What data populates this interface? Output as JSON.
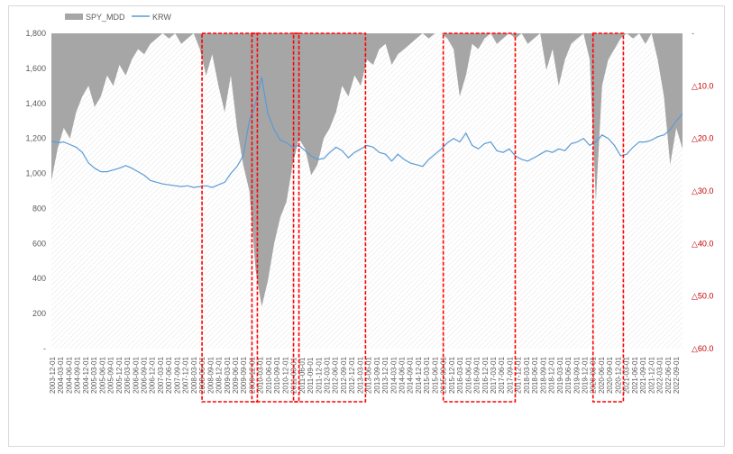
{
  "chart_data": {
    "type": "area+line",
    "title": "",
    "legend": [
      {
        "name": "SPY_MDD",
        "color": "#a6a6a6",
        "kind": "area"
      },
      {
        "name": "KRW",
        "color": "#5b9bd5",
        "kind": "line"
      }
    ],
    "left_axis": {
      "range": [
        0,
        1800
      ],
      "ticks": [
        "-",
        "200",
        "400",
        "600",
        "800",
        "1,000",
        "1,200",
        "1,400",
        "1,600",
        "1,800"
      ]
    },
    "right_axis": {
      "range_desc": "drawdown %, 0 at top to 60 at bottom",
      "range": [
        0,
        60
      ],
      "ticks": [
        "-",
        "△10.0",
        "△20.0",
        "△30.0",
        "△40.0",
        "△50.0",
        "△60.0"
      ]
    },
    "x_labels": [
      "2003-12-01",
      "2004-03-01",
      "2004-06-01",
      "2004-09-01",
      "2004-12-01",
      "2005-03-01",
      "2005-06-01",
      "2005-09-01",
      "2005-12-01",
      "2006-03-01",
      "2006-06-01",
      "2006-09-01",
      "2006-12-01",
      "2007-03-01",
      "2007-06-01",
      "2007-09-01",
      "2007-12-01",
      "2008-03-01",
      "2008-06-01",
      "2008-09-01",
      "2008-12-01",
      "2009-03-01",
      "2009-06-01",
      "2009-09-01",
      "2009-12-01",
      "2010-03-01",
      "2010-06-01",
      "2010-09-01",
      "2010-12-01",
      "2011-03-01",
      "2011-06-01",
      "2011-09-01",
      "2011-12-01",
      "2012-03-01",
      "2012-06-01",
      "2012-09-01",
      "2012-12-01",
      "2013-03-01",
      "2013-06-01",
      "2013-09-01",
      "2013-12-01",
      "2014-03-01",
      "2014-06-01",
      "2014-09-01",
      "2014-12-01",
      "2015-03-01",
      "2015-06-01",
      "2015-09-01",
      "2015-12-01",
      "2016-03-01",
      "2016-06-01",
      "2016-09-01",
      "2016-12-01",
      "2017-03-01",
      "2017-06-01",
      "2017-09-01",
      "2017-12-01",
      "2018-03-01",
      "2018-06-01",
      "2018-09-01",
      "2018-12-01",
      "2019-03-01",
      "2019-06-01",
      "2019-09-01",
      "2019-12-01",
      "2020-03-01",
      "2020-06-01",
      "2020-09-01",
      "2020-12-01",
      "2021-03-01",
      "2021-06-01",
      "2021-09-01",
      "2021-12-01",
      "2022-03-01",
      "2022-06-01",
      "2022-09-01"
    ],
    "krw_series": {
      "name": "KRW",
      "unit": "KRW per USD",
      "points": [
        [
          0,
          1185
        ],
        [
          2,
          1175
        ],
        [
          4,
          1180
        ],
        [
          6,
          1165
        ],
        [
          8,
          1150
        ],
        [
          10,
          1120
        ],
        [
          12,
          1060
        ],
        [
          14,
          1030
        ],
        [
          16,
          1010
        ],
        [
          18,
          1010
        ],
        [
          20,
          1020
        ],
        [
          22,
          1030
        ],
        [
          24,
          1045
        ],
        [
          26,
          1030
        ],
        [
          28,
          1010
        ],
        [
          30,
          990
        ],
        [
          32,
          960
        ],
        [
          34,
          950
        ],
        [
          36,
          940
        ],
        [
          38,
          935
        ],
        [
          40,
          930
        ],
        [
          42,
          925
        ],
        [
          44,
          930
        ],
        [
          46,
          920
        ],
        [
          48,
          925
        ],
        [
          50,
          930
        ],
        [
          52,
          920
        ],
        [
          54,
          935
        ],
        [
          56,
          950
        ],
        [
          58,
          1000
        ],
        [
          60,
          1040
        ],
        [
          62,
          1100
        ],
        [
          64,
          1300
        ],
        [
          66,
          1400
        ],
        [
          67,
          1480
        ],
        [
          68,
          1550
        ],
        [
          69,
          1440
        ],
        [
          70,
          1340
        ],
        [
          72,
          1250
        ],
        [
          74,
          1190
        ],
        [
          76,
          1175
        ],
        [
          78,
          1150
        ],
        [
          80,
          1160
        ],
        [
          82,
          1130
        ],
        [
          84,
          1100
        ],
        [
          86,
          1080
        ],
        [
          88,
          1085
        ],
        [
          90,
          1120
        ],
        [
          92,
          1150
        ],
        [
          94,
          1130
        ],
        [
          96,
          1090
        ],
        [
          98,
          1120
        ],
        [
          100,
          1140
        ],
        [
          102,
          1160
        ],
        [
          104,
          1150
        ],
        [
          106,
          1120
        ],
        [
          108,
          1110
        ],
        [
          110,
          1070
        ],
        [
          112,
          1110
        ],
        [
          114,
          1080
        ],
        [
          116,
          1060
        ],
        [
          118,
          1050
        ],
        [
          120,
          1040
        ],
        [
          122,
          1080
        ],
        [
          124,
          1110
        ],
        [
          126,
          1140
        ],
        [
          128,
          1175
        ],
        [
          130,
          1200
        ],
        [
          132,
          1180
        ],
        [
          134,
          1230
        ],
        [
          136,
          1160
        ],
        [
          138,
          1140
        ],
        [
          140,
          1170
        ],
        [
          142,
          1180
        ],
        [
          144,
          1130
        ],
        [
          146,
          1120
        ],
        [
          148,
          1140
        ],
        [
          150,
          1100
        ],
        [
          152,
          1080
        ],
        [
          154,
          1070
        ],
        [
          156,
          1090
        ],
        [
          158,
          1110
        ],
        [
          160,
          1130
        ],
        [
          162,
          1120
        ],
        [
          164,
          1140
        ],
        [
          166,
          1130
        ],
        [
          168,
          1170
        ],
        [
          170,
          1180
        ],
        [
          172,
          1200
        ],
        [
          174,
          1160
        ],
        [
          176,
          1180
        ],
        [
          178,
          1220
        ],
        [
          180,
          1200
        ],
        [
          182,
          1160
        ],
        [
          184,
          1100
        ],
        [
          186,
          1110
        ],
        [
          188,
          1150
        ],
        [
          190,
          1180
        ],
        [
          192,
          1180
        ],
        [
          194,
          1190
        ],
        [
          196,
          1210
        ],
        [
          198,
          1220
        ],
        [
          200,
          1250
        ],
        [
          202,
          1300
        ],
        [
          204,
          1340
        ]
      ],
      "x_range": [
        0,
        204
      ]
    },
    "mdd_series": {
      "name": "SPY_MDD",
      "unit": "drawdown % (shown as △)",
      "points": [
        [
          0,
          28
        ],
        [
          2,
          22
        ],
        [
          4,
          18
        ],
        [
          6,
          20
        ],
        [
          8,
          15
        ],
        [
          10,
          12
        ],
        [
          12,
          10
        ],
        [
          14,
          14
        ],
        [
          16,
          12
        ],
        [
          18,
          8
        ],
        [
          20,
          10
        ],
        [
          22,
          6
        ],
        [
          24,
          8
        ],
        [
          26,
          5
        ],
        [
          28,
          3
        ],
        [
          30,
          4
        ],
        [
          32,
          2
        ],
        [
          34,
          1
        ],
        [
          36,
          0
        ],
        [
          38,
          1
        ],
        [
          40,
          0
        ],
        [
          42,
          2
        ],
        [
          44,
          1
        ],
        [
          46,
          0
        ],
        [
          48,
          3
        ],
        [
          50,
          8
        ],
        [
          52,
          4
        ],
        [
          54,
          10
        ],
        [
          56,
          15
        ],
        [
          58,
          8
        ],
        [
          60,
          18
        ],
        [
          62,
          25
        ],
        [
          64,
          30
        ],
        [
          66,
          45
        ],
        [
          68,
          52
        ],
        [
          70,
          47
        ],
        [
          72,
          40
        ],
        [
          74,
          35
        ],
        [
          76,
          32
        ],
        [
          78,
          25
        ],
        [
          80,
          20
        ],
        [
          82,
          22
        ],
        [
          84,
          27
        ],
        [
          86,
          25
        ],
        [
          88,
          20
        ],
        [
          90,
          18
        ],
        [
          92,
          15
        ],
        [
          94,
          10
        ],
        [
          96,
          12
        ],
        [
          98,
          8
        ],
        [
          100,
          10
        ],
        [
          102,
          5
        ],
        [
          104,
          6
        ],
        [
          106,
          3
        ],
        [
          108,
          2
        ],
        [
          110,
          6
        ],
        [
          112,
          4
        ],
        [
          114,
          3
        ],
        [
          116,
          2
        ],
        [
          118,
          1
        ],
        [
          120,
          0
        ],
        [
          122,
          1
        ],
        [
          124,
          0
        ],
        [
          126,
          0
        ],
        [
          128,
          1
        ],
        [
          130,
          3
        ],
        [
          132,
          12
        ],
        [
          134,
          8
        ],
        [
          136,
          2
        ],
        [
          138,
          3
        ],
        [
          140,
          1
        ],
        [
          142,
          0
        ],
        [
          144,
          2
        ],
        [
          146,
          1
        ],
        [
          148,
          0
        ],
        [
          150,
          1
        ],
        [
          152,
          0
        ],
        [
          154,
          2
        ],
        [
          156,
          1
        ],
        [
          158,
          0
        ],
        [
          160,
          7
        ],
        [
          162,
          3
        ],
        [
          164,
          10
        ],
        [
          166,
          5
        ],
        [
          168,
          2
        ],
        [
          170,
          1
        ],
        [
          172,
          0
        ],
        [
          174,
          5
        ],
        [
          176,
          32
        ],
        [
          178,
          10
        ],
        [
          180,
          5
        ],
        [
          182,
          3
        ],
        [
          184,
          1
        ],
        [
          186,
          0
        ],
        [
          188,
          1
        ],
        [
          190,
          0
        ],
        [
          192,
          2
        ],
        [
          194,
          0
        ],
        [
          196,
          5
        ],
        [
          198,
          12
        ],
        [
          200,
          25
        ],
        [
          202,
          18
        ],
        [
          204,
          22
        ]
      ],
      "x_range": [
        0,
        204
      ]
    },
    "highlight_boxes_desc": "red dashed rectangles marking periods",
    "highlight_periods": [
      [
        "2008-06-01",
        "2009-12-01"
      ],
      [
        "2009-12-01",
        "2011-03-01"
      ],
      [
        "2011-03-01",
        "2013-03-01"
      ],
      [
        "2015-09-01",
        "2017-09-01"
      ],
      [
        "2020-03-01",
        "2020-12-01"
      ]
    ]
  }
}
